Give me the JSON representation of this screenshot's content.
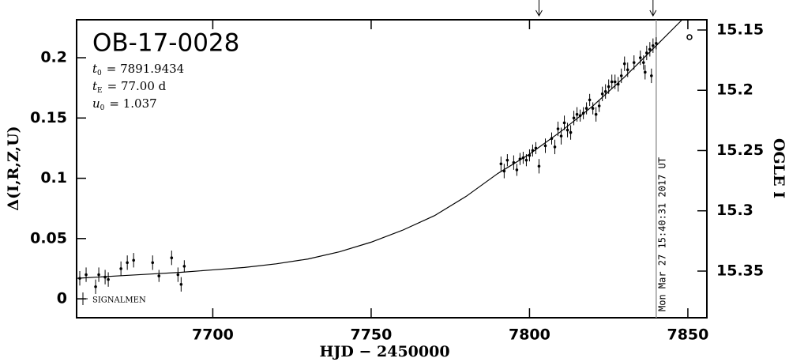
{
  "chart_data": {
    "type": "scatter",
    "title": "OB-17-0028",
    "parameters": [
      {
        "symbol": "t",
        "sub": "0",
        "text": "= 7891.9434"
      },
      {
        "symbol": "t",
        "sub": "E",
        "text": "= 77.00 d"
      },
      {
        "symbol": "u",
        "sub": "0",
        "text": "= 1.037"
      }
    ],
    "xlabel": "HJD − 2450000",
    "ylabel": "Δ(I,R,Z,U)",
    "y2label": "OGLE I",
    "xlim": [
      7657,
      7856
    ],
    "ylim": [
      -0.0157,
      0.2315
    ],
    "y2lim": [
      15.3887,
      15.1415
    ],
    "xticks": [
      7700,
      7750,
      7800,
      7850
    ],
    "yticks": [
      0,
      0.05,
      0.1,
      0.15,
      0.2
    ],
    "y2ticks": [
      15.15,
      15.2,
      15.25,
      15.3,
      15.35
    ],
    "legend": "lower left",
    "series": [
      {
        "name": "SIGNALMEN",
        "color": "#000000",
        "x": [
          7658,
          7660,
          7663,
          7664,
          7666,
          7667,
          7671,
          7673,
          7675,
          7681,
          7683,
          7687,
          7689,
          7690,
          7691,
          7791,
          7792,
          7793,
          7795,
          7796,
          7797,
          7798,
          7799,
          7800,
          7801,
          7802,
          7803,
          7805,
          7807,
          7808,
          7809,
          7810,
          7811,
          7812,
          7813,
          7814,
          7815,
          7816,
          7817,
          7818,
          7819,
          7820,
          7821,
          7822,
          7823,
          7824,
          7825,
          7826,
          7827,
          7828,
          7829,
          7830,
          7831,
          7833,
          7835,
          7836,
          7836.5,
          7837,
          7838,
          7838.5,
          7839,
          7840
        ],
        "values": [
          0.017,
          0.02,
          0.01,
          0.02,
          0.018,
          0.016,
          0.025,
          0.03,
          0.032,
          0.03,
          0.019,
          0.034,
          0.02,
          0.012,
          0.027,
          0.112,
          0.106,
          0.115,
          0.113,
          0.107,
          0.116,
          0.117,
          0.115,
          0.119,
          0.123,
          0.125,
          0.11,
          0.127,
          0.133,
          0.126,
          0.141,
          0.135,
          0.146,
          0.14,
          0.138,
          0.15,
          0.153,
          0.152,
          0.154,
          0.158,
          0.165,
          0.158,
          0.153,
          0.16,
          0.17,
          0.172,
          0.176,
          0.18,
          0.18,
          0.178,
          0.185,
          0.195,
          0.19,
          0.196,
          0.2,
          0.196,
          0.188,
          0.204,
          0.207,
          0.185,
          0.21,
          0.212
        ],
        "errors": [
          0.006,
          0.006,
          0.006,
          0.006,
          0.006,
          0.006,
          0.006,
          0.006,
          0.006,
          0.006,
          0.005,
          0.006,
          0.006,
          0.006,
          0.005,
          0.006,
          0.006,
          0.005,
          0.006,
          0.005,
          0.005,
          0.005,
          0.005,
          0.005,
          0.005,
          0.005,
          0.006,
          0.006,
          0.005,
          0.006,
          0.006,
          0.007,
          0.006,
          0.006,
          0.006,
          0.006,
          0.006,
          0.005,
          0.005,
          0.005,
          0.005,
          0.005,
          0.006,
          0.005,
          0.006,
          0.006,
          0.006,
          0.006,
          0.006,
          0.006,
          0.006,
          0.006,
          0.006,
          0.006,
          0.006,
          0.006,
          0.006,
          0.006,
          0.006,
          0.006,
          0.006,
          0.005
        ]
      }
    ],
    "model": {
      "color": "#000000",
      "x": [
        7657,
        7670,
        7680,
        7690,
        7700,
        7710,
        7720,
        7730,
        7740,
        7750,
        7760,
        7770,
        7780,
        7790,
        7800,
        7810,
        7820,
        7830,
        7840,
        7848
      ],
      "values": [
        0.017,
        0.019,
        0.0205,
        0.022,
        0.024,
        0.026,
        0.029,
        0.033,
        0.039,
        0.047,
        0.057,
        0.069,
        0.085,
        0.104,
        0.12,
        0.139,
        0.16,
        0.184,
        0.21,
        0.231
      ]
    },
    "vline": {
      "x": 7840,
      "color": "#999999",
      "label": "Mon Mar 27 15:40:31 2017 UT"
    },
    "arrows_x": [
      7803,
      7839
    ]
  }
}
